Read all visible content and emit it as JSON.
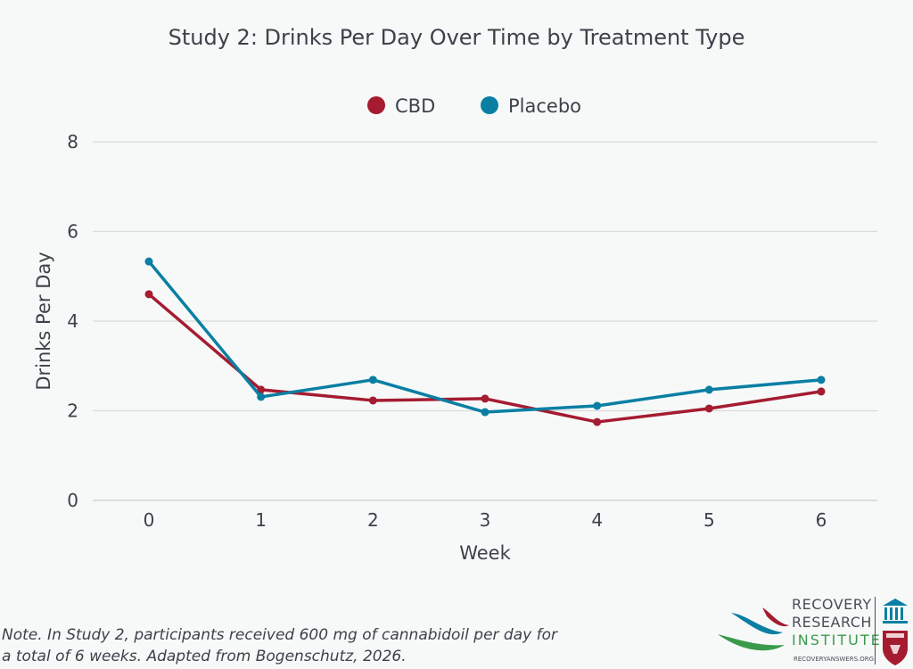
{
  "chart_data": {
    "type": "line",
    "title": "Study 2: Drinks Per Day Over Time by Treatment Type",
    "xlabel": "Week",
    "ylabel": "Drinks Per Day",
    "x": [
      0,
      1,
      2,
      3,
      4,
      5,
      6
    ],
    "x_tick_labels": [
      "0",
      "1",
      "2",
      "3",
      "4",
      "5",
      "6"
    ],
    "y_ticks": [
      0,
      2,
      4,
      6,
      8
    ],
    "y_tick_labels": [
      "0",
      "2",
      "4",
      "6",
      "8"
    ],
    "ylim": [
      0,
      8
    ],
    "grid": true,
    "legend_position": "top-center",
    "series": [
      {
        "name": "CBD",
        "color": "#a51c30",
        "values": [
          4.6,
          2.47,
          2.23,
          2.27,
          1.75,
          2.05,
          2.43
        ]
      },
      {
        "name": "Placebo",
        "color": "#0a7fa3",
        "values": [
          5.33,
          2.31,
          2.69,
          1.97,
          2.11,
          2.47,
          2.69
        ]
      }
    ]
  },
  "note": {
    "line1": "Note. In Study 2, participants received 600 mg of cannabidoil per day for",
    "line2": "a total of 6 weeks. Adapted from Bogenschutz, 2026."
  },
  "logo": {
    "line1": "RECOVERY",
    "line2": "RESEARCH",
    "line3": "INSTITUTE",
    "url": "RECOVERYANSWERS.ORG"
  }
}
